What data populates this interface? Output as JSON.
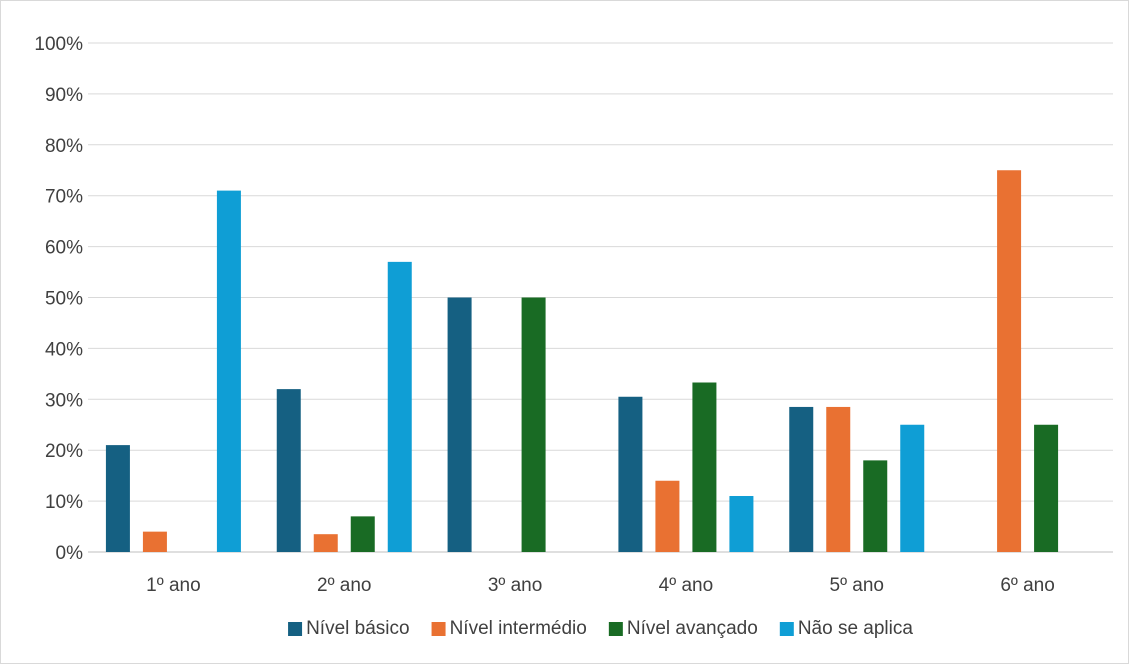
{
  "chart_data": {
    "type": "bar",
    "title": "",
    "xlabel": "",
    "ylabel": "",
    "ylim": [
      0,
      100
    ],
    "y_ticks": [
      "0%",
      "10%",
      "20%",
      "30%",
      "40%",
      "50%",
      "60%",
      "70%",
      "80%",
      "90%",
      "100%"
    ],
    "grid": true,
    "legend_position": "bottom",
    "categories": [
      "1º ano",
      "2º ano",
      "3º ano",
      "4º ano",
      "5º ano",
      "6º ano"
    ],
    "series": [
      {
        "name": "Nível básico",
        "color": "#156082",
        "values": [
          21,
          32,
          50,
          30.5,
          28.5,
          0
        ]
      },
      {
        "name": "Nível intermédio",
        "color": "#E97132",
        "values": [
          4,
          3.5,
          0,
          14,
          28.5,
          75
        ]
      },
      {
        "name": "Nível avançado",
        "color": "#196B24",
        "values": [
          0,
          7,
          50,
          33.3,
          18,
          25
        ]
      },
      {
        "name": "Não se aplica",
        "color": "#0F9ED5",
        "values": [
          71,
          57,
          0,
          11,
          25,
          0
        ]
      }
    ]
  }
}
